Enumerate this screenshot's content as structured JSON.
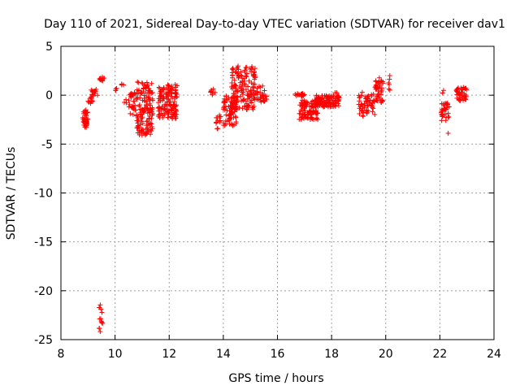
{
  "chart_data": {
    "type": "scatter",
    "title": "Day 110 of 2021, Sidereal Day-to-day VTEC variation (SDTVAR) for receiver dav1",
    "xlabel": "GPS time / hours",
    "ylabel": "SDTVAR / TECUs",
    "xlim": [
      8,
      24
    ],
    "ylim": [
      -25,
      5
    ],
    "xticks": [
      8,
      10,
      12,
      14,
      16,
      18,
      20,
      22,
      24
    ],
    "yticks": [
      -25,
      -20,
      -15,
      -10,
      -5,
      0,
      5
    ],
    "grid": true,
    "marker": "plus",
    "color": "#ff0000",
    "series": [
      {
        "name": "SDTVAR",
        "clusters": [
          {
            "x": [
              8.8,
              9.0
            ],
            "y": [
              -3.3,
              -1.5
            ],
            "n": 40
          },
          {
            "x": [
              9.0,
              9.15
            ],
            "y": [
              -1.2,
              -0.3
            ],
            "n": 6
          },
          {
            "x": [
              9.1,
              9.35
            ],
            "y": [
              -0.6,
              0.6
            ],
            "n": 18
          },
          {
            "x": [
              9.4,
              9.6
            ],
            "y": [
              1.4,
              1.9
            ],
            "n": 10
          },
          {
            "x": [
              9.4,
              9.55
            ],
            "y": [
              -24.2,
              -21.4
            ],
            "n": 14
          },
          {
            "x": [
              10.0,
              10.1
            ],
            "y": [
              0.4,
              0.7
            ],
            "n": 3
          },
          {
            "x": [
              10.2,
              10.35
            ],
            "y": [
              0.9,
              1.2
            ],
            "n": 3
          },
          {
            "x": [
              10.3,
              10.45
            ],
            "y": [
              -0.8,
              -0.3
            ],
            "n": 3
          },
          {
            "x": [
              10.5,
              10.8
            ],
            "y": [
              -2.2,
              0.3
            ],
            "n": 30
          },
          {
            "x": [
              10.8,
              11.4
            ],
            "y": [
              -4.1,
              1.4
            ],
            "n": 140
          },
          {
            "x": [
              11.6,
              12.3
            ],
            "y": [
              -2.4,
              1.1
            ],
            "n": 140
          },
          {
            "x": [
              13.5,
              13.7
            ],
            "y": [
              0.0,
              0.7
            ],
            "n": 8
          },
          {
            "x": [
              13.7,
              13.9
            ],
            "y": [
              -2.9,
              -2.0
            ],
            "n": 10
          },
          {
            "x": [
              13.75,
              13.85
            ],
            "y": [
              -3.7,
              -3.3
            ],
            "n": 2
          },
          {
            "x": [
              14.0,
              14.5
            ],
            "y": [
              -3.2,
              0.0
            ],
            "n": 70
          },
          {
            "x": [
              14.3,
              15.2
            ],
            "y": [
              -1.5,
              3.0
            ],
            "n": 160
          },
          {
            "x": [
              15.2,
              15.6
            ],
            "y": [
              -0.7,
              1.0
            ],
            "n": 30
          },
          {
            "x": [
              16.6,
              17.0
            ],
            "y": [
              -0.1,
              0.2
            ],
            "n": 20
          },
          {
            "x": [
              16.8,
              17.5
            ],
            "y": [
              -2.5,
              -0.5
            ],
            "n": 100
          },
          {
            "x": [
              17.4,
              18.3
            ],
            "y": [
              -1.2,
              0.0
            ],
            "n": 120
          },
          {
            "x": [
              18.1,
              18.2
            ],
            "y": [
              0.0,
              0.3
            ],
            "n": 3
          },
          {
            "x": [
              19.0,
              19.3
            ],
            "y": [
              -2.2,
              0.3
            ],
            "n": 30
          },
          {
            "x": [
              19.3,
              19.6
            ],
            "y": [
              -2.2,
              0.2
            ],
            "n": 30
          },
          {
            "x": [
              19.6,
              19.9
            ],
            "y": [
              -0.8,
              1.8
            ],
            "n": 45
          },
          {
            "x": [
              20.1,
              20.2
            ],
            "y": [
              0.5,
              2.0
            ],
            "n": 6
          },
          {
            "x": [
              22.05,
              22.35
            ],
            "y": [
              -2.6,
              -0.8
            ],
            "n": 35
          },
          {
            "x": [
              22.1,
              22.15
            ],
            "y": [
              0.2,
              0.5
            ],
            "n": 2
          },
          {
            "x": [
              22.3,
              22.4
            ],
            "y": [
              -4.1,
              -3.8
            ],
            "n": 1
          },
          {
            "x": [
              22.6,
              23.0
            ],
            "y": [
              -0.6,
              0.8
            ],
            "n": 45
          }
        ]
      }
    ]
  }
}
